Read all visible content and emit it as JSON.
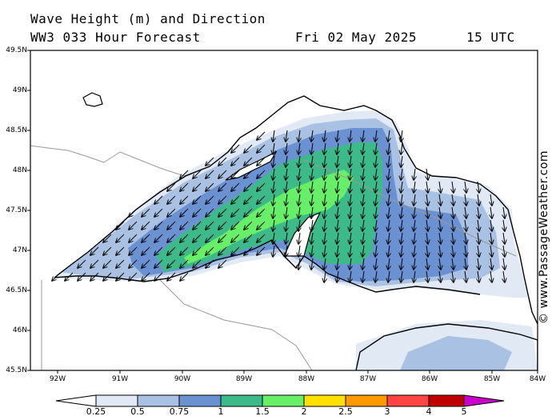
{
  "header": {
    "title": "Wave Height (m) and Direction",
    "model_forecast": "WW3 033 Hour Forecast",
    "date": "Fri 02 May 2025",
    "time": "15 UTC"
  },
  "map": {
    "latitude_labels": [
      "49.5N",
      "49N",
      "48.5N",
      "48N",
      "47.5N",
      "47N",
      "46.5N",
      "46N",
      "45.5N"
    ],
    "longitude_labels": [
      "92W",
      "91W",
      "90W",
      "89W",
      "88W",
      "87W",
      "86W",
      "85W",
      "84W"
    ],
    "region": "Lake Superior",
    "arrow_direction": "south / south-west",
    "colors": {
      "land": "#ffffff",
      "coast": "#000000",
      "border": "#999999",
      "band_0_25": "#e1e9f4",
      "band_0_5": "#a9c1e2",
      "band_0_75": "#6a92d2",
      "band_1": "#3cba8a",
      "band_1_5": "#67f067"
    }
  },
  "credit": "© www.PassageWeather.com",
  "legend": {
    "ticks": [
      "0.25",
      "0.5",
      "0.75",
      "1",
      "1.5",
      "2",
      "2.5",
      "3",
      "4",
      "5"
    ],
    "colors": [
      "#e1e9f4",
      "#a9c1e2",
      "#6a92d2",
      "#3cba8a",
      "#67f067",
      "#ffe000",
      "#ff9900",
      "#ff4444",
      "#c00000",
      "#cc00cc"
    ]
  }
}
